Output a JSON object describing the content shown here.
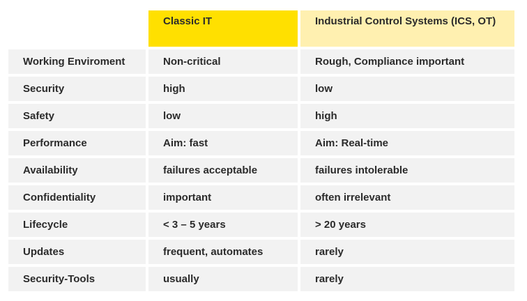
{
  "header": {
    "col_blank": "",
    "col_it": "Classic IT",
    "col_ics": "Industrial Control Systems (ICS, OT)"
  },
  "rows": [
    {
      "label": "Working Enviroment",
      "it": "Non-critical",
      "ics": "Rough, Compliance important"
    },
    {
      "label": "Security",
      "it": "high",
      "ics": "low"
    },
    {
      "label": "Safety",
      "it": "low",
      "ics": "high"
    },
    {
      "label": "Performance",
      "it": "Aim: fast",
      "ics": "Aim: Real-time"
    },
    {
      "label": "Availability",
      "it": "failures acceptable",
      "ics": "failures intolerable"
    },
    {
      "label": "Confidentiality",
      "it": "important",
      "ics": "often irrelevant"
    },
    {
      "label": "Lifecycle",
      "it": "<  3 – 5 years",
      "ics": "> 20 years"
    },
    {
      "label": "Updates",
      "it": "frequent, automates",
      "ics": "rarely"
    },
    {
      "label": "Security-Tools",
      "it": "usually",
      "ics": "rarely"
    }
  ],
  "colors": {
    "it_header": "#ffe000",
    "ics_header": "#fff0b0",
    "row_bg": "#f2f2f2"
  }
}
